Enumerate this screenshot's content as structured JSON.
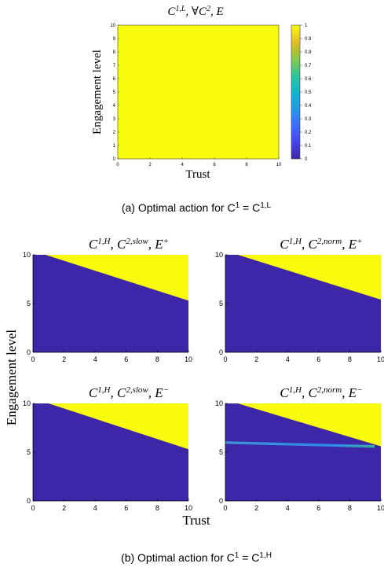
{
  "colors": {
    "yellow": "#F9FB0E",
    "blue": "#3E26A8",
    "cyan": "#33B7A0",
    "lightblue": "#2C8DED"
  },
  "top": {
    "caption": "(a) Optimal action for C",
    "caption_sup": "1",
    "caption_eq": " = C",
    "caption_sup2": "1,L"
  },
  "bottom": {
    "caption": "(b) Optimal action for C",
    "caption_sup": "1",
    "caption_eq": " = C",
    "caption_sup2": "1,H",
    "ylabel": "Engagement level",
    "xlabel": "Trust"
  },
  "chart_data": [
    {
      "id": "a",
      "type": "heatmap",
      "title": {
        "base": "C",
        "sup1": "1,L",
        "mid": ", ∀C",
        "sup2": "2",
        "end": ", E"
      },
      "xlabel": "Trust",
      "ylabel": "Engagement level",
      "xlim": [
        0,
        10
      ],
      "ylim": [
        0,
        10
      ],
      "xticks": [
        "0",
        "2",
        "4",
        "6",
        "8",
        "10"
      ],
      "yticks": [
        "0",
        "1",
        "2",
        "3",
        "4",
        "5",
        "6",
        "7",
        "8",
        "9",
        "10"
      ],
      "uniform_value": 1,
      "colorbar": {
        "ticks": [
          "0",
          "0.1",
          "0.2",
          "0.3",
          "0.4",
          "0.5",
          "0.6",
          "0.7",
          "0.8",
          "0.9",
          "1"
        ],
        "range": [
          0,
          1
        ]
      }
    },
    {
      "id": "b1",
      "type": "heatmap",
      "title": {
        "base": "C",
        "sup1": "1,H",
        "mid": ", C",
        "sup2": "2,slow",
        "end": ", E",
        "sup3": "+"
      },
      "xlim": [
        0,
        10
      ],
      "ylim": [
        0,
        10
      ],
      "xticks": [
        "0",
        "2",
        "4",
        "6",
        "8",
        "10"
      ],
      "yticks": [
        "0",
        "5",
        "10"
      ],
      "boundary": {
        "x": [
          0.8,
          10
        ],
        "y": [
          10,
          5.3
        ]
      }
    },
    {
      "id": "b2",
      "type": "heatmap",
      "title": {
        "base": "C",
        "sup1": "1,H",
        "mid": ", C",
        "sup2": "2,norm",
        "end": ", E",
        "sup3": "+"
      },
      "xlim": [
        0,
        10
      ],
      "ylim": [
        0,
        10
      ],
      "xticks": [
        "0",
        "2",
        "4",
        "6",
        "8",
        "10"
      ],
      "yticks": [
        "0",
        "5",
        "10"
      ],
      "boundary": {
        "x": [
          0.8,
          10
        ],
        "y": [
          10,
          5.4
        ]
      }
    },
    {
      "id": "b3",
      "type": "heatmap",
      "title": {
        "base": "C",
        "sup1": "1,H",
        "mid": ", C",
        "sup2": "2,slow",
        "end": ", E",
        "sup3": "−"
      },
      "xlim": [
        0,
        10
      ],
      "ylim": [
        0,
        10
      ],
      "xticks": [
        "0",
        "2",
        "4",
        "6",
        "8",
        "10"
      ],
      "yticks": [
        "0",
        "5",
        "10"
      ],
      "boundary": {
        "x": [
          1.0,
          10
        ],
        "y": [
          10,
          5.3
        ]
      }
    },
    {
      "id": "b4",
      "type": "heatmap",
      "title": {
        "base": "C",
        "sup1": "1,H",
        "mid": ", C",
        "sup2": "2,norm",
        "end": ", E",
        "sup3": "−"
      },
      "xlim": [
        0,
        10
      ],
      "ylim": [
        0,
        10
      ],
      "xticks": [
        "0",
        "2",
        "4",
        "6",
        "8",
        "10"
      ],
      "yticks": [
        "0",
        "5",
        "10"
      ],
      "boundary": {
        "x": [
          0.8,
          10
        ],
        "y": [
          10,
          5.6
        ]
      },
      "band": {
        "x": [
          0,
          10
        ],
        "y": [
          6.0,
          5.6
        ]
      }
    }
  ]
}
